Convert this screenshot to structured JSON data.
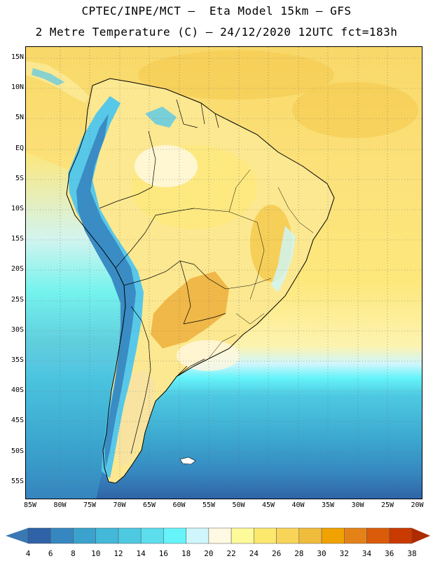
{
  "title_line1": "CPTEC/INPE/MCT –  Eta Model 15km – GFS",
  "title_line2": "2 Metre Temperature (C) – 24/12/2020 12UTC fct=183h",
  "lat_labels": [
    "15N",
    "10N",
    "5N",
    "EQ",
    "5S",
    "10S",
    "15S",
    "20S",
    "25S",
    "30S",
    "35S",
    "40S",
    "45S",
    "50S",
    "55S"
  ],
  "lon_labels": [
    "85W",
    "80W",
    "75W",
    "70W",
    "65W",
    "60W",
    "55W",
    "50W",
    "45W",
    "40W",
    "35W",
    "30W",
    "25W",
    "20W"
  ],
  "colorbar": {
    "levels": [
      "4",
      "6",
      "8",
      "10",
      "12",
      "14",
      "16",
      "18",
      "20",
      "22",
      "24",
      "26",
      "28",
      "30",
      "32",
      "34",
      "36",
      "38"
    ],
    "colors": [
      "#3a78b4",
      "#2f62a6",
      "#3687c0",
      "#3aa2cc",
      "#44b8d8",
      "#4ec9e2",
      "#5cdeee",
      "#66f4fa",
      "#cef6fc",
      "#fff8e2",
      "#fdfa9a",
      "#fde86e",
      "#f8d458",
      "#f0bc3c",
      "#f0a200",
      "#e48218",
      "#da5c0a",
      "#c83a00",
      "#ae2a00"
    ]
  },
  "field_colors": {
    "ocean_warm": "#f8d868",
    "ocean_hot": "#f4c84a",
    "land_warm": "#fce890",
    "land_hot": "#f0b848",
    "andes_cold": "#3a8cc4",
    "andes_cool": "#58c8e8",
    "southern_land": "#f8e4a0",
    "pale": "#fff8e0"
  }
}
